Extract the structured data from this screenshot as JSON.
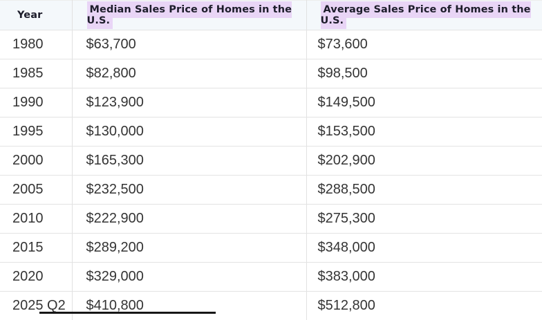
{
  "header": {
    "columns": [
      {
        "label": "Year",
        "highlighted": false
      },
      {
        "label": "Median Sales Price of Homes in the U.S.",
        "highlighted": true
      },
      {
        "label": "Average Sales Price of Homes in the U.S.",
        "highlighted": true
      }
    ]
  },
  "rows": [
    {
      "year": "1980",
      "median": "$63,700",
      "average": "$73,600"
    },
    {
      "year": "1985",
      "median": "$82,800",
      "average": "$98,500"
    },
    {
      "year": "1990",
      "median": "$123,900",
      "average": "$149,500"
    },
    {
      "year": "1995",
      "median": "$130,000",
      "average": "$153,500"
    },
    {
      "year": "2000",
      "median": "$165,300",
      "average": "$202,900"
    },
    {
      "year": "2005",
      "median": "$232,500",
      "average": "$288,500"
    },
    {
      "year": "2010",
      "median": "$222,900",
      "average": "$275,300"
    },
    {
      "year": "2015",
      "median": "$289,200",
      "average": "$348,000"
    },
    {
      "year": "2020",
      "median": "$329,000",
      "average": "$383,000"
    },
    {
      "year": "2025 Q2",
      "median": "$410,800",
      "average": "$512,800"
    }
  ],
  "colors": {
    "header_row_bg": "#f4f8fb",
    "header_highlight": "#e9d5f6",
    "header_text": "#1d1d2b",
    "body_text": "#343434",
    "row_border": "#e3e3e3",
    "cutoff_bar": "#161616"
  },
  "chart_data": {
    "type": "table",
    "title": "",
    "categories": [
      "1980",
      "1985",
      "1990",
      "1995",
      "2000",
      "2005",
      "2010",
      "2015",
      "2020",
      "2025 Q2"
    ],
    "series": [
      {
        "name": "Median Sales Price of Homes in the U.S.",
        "values": [
          63700,
          82800,
          123900,
          130000,
          165300,
          232500,
          222900,
          289200,
          329000,
          410800
        ]
      },
      {
        "name": "Average Sales Price of Homes in the U.S.",
        "values": [
          73600,
          98500,
          149500,
          153500,
          202900,
          288500,
          275300,
          348000,
          383000,
          512800
        ]
      }
    ],
    "layout": {
      "columns": [
        "Year",
        "Median Sales Price of Homes in the U.S.",
        "Average Sales Price of Homes in the U.S."
      ],
      "highlighted_headers": [
        1,
        2
      ]
    }
  }
}
